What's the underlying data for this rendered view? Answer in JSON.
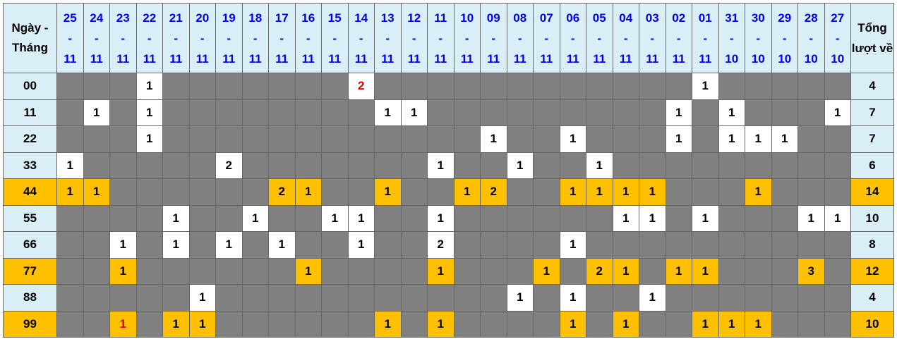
{
  "header": {
    "label": "Ngày - Tháng",
    "total": "Tổng lượt về"
  },
  "columns": [
    "25-11",
    "24-11",
    "23-11",
    "22-11",
    "21-11",
    "20-11",
    "19-11",
    "18-11",
    "17-11",
    "16-11",
    "15-11",
    "14-11",
    "13-11",
    "12-11",
    "11-11",
    "10-11",
    "09-11",
    "08-11",
    "07-11",
    "06-11",
    "05-11",
    "04-11",
    "03-11",
    "02-11",
    "01-11",
    "31-10",
    "30-10",
    "29-10",
    "28-10",
    "27-10"
  ],
  "colors": {
    "highlight": "#ffc000",
    "empty": "#808080",
    "header": "#daeef7",
    "date_text": "#0000ee",
    "red_text": "#e00000"
  },
  "rows": [
    {
      "label": "00",
      "highlight": false,
      "total": "4",
      "cells": {
        "3": 1,
        "11": 2,
        "24": 1
      },
      "red": [
        11
      ]
    },
    {
      "label": "11",
      "highlight": false,
      "total": "7",
      "cells": {
        "1": 1,
        "3": 1,
        "12": 1,
        "13": 1,
        "23": 1,
        "25": 1,
        "29": 1
      },
      "red": []
    },
    {
      "label": "22",
      "highlight": false,
      "total": "7",
      "cells": {
        "3": 1,
        "16": 1,
        "19": 1,
        "23": 1,
        "25": 1,
        "26": 1,
        "27": 1
      },
      "red": []
    },
    {
      "label": "33",
      "highlight": false,
      "total": "6",
      "cells": {
        "0": 1,
        "6": 2,
        "14": 1,
        "17": 1,
        "20": 1
      },
      "red": []
    },
    {
      "label": "44",
      "highlight": true,
      "total": "14",
      "cells": {
        "0": 1,
        "1": 1,
        "8": 2,
        "9": 1,
        "12": 1,
        "15": 1,
        "16": 2,
        "19": 1,
        "20": 1,
        "21": 1,
        "22": 1,
        "26": 1
      },
      "red": []
    },
    {
      "label": "55",
      "highlight": false,
      "total": "10",
      "cells": {
        "4": 1,
        "7": 1,
        "10": 1,
        "11": 1,
        "14": 1,
        "21": 1,
        "22": 1,
        "24": 1,
        "28": 1,
        "29": 1
      },
      "red": []
    },
    {
      "label": "66",
      "highlight": false,
      "total": "8",
      "cells": {
        "2": 1,
        "4": 1,
        "6": 1,
        "8": 1,
        "11": 1,
        "14": 2,
        "19": 1
      },
      "red": []
    },
    {
      "label": "77",
      "highlight": true,
      "total": "12",
      "cells": {
        "2": 1,
        "9": 1,
        "14": 1,
        "18": 1,
        "20": 2,
        "21": 1,
        "23": 1,
        "24": 1,
        "28": 3
      },
      "red": []
    },
    {
      "label": "88",
      "highlight": false,
      "total": "4",
      "cells": {
        "5": 1,
        "17": 1,
        "19": 1,
        "22": 1
      },
      "red": []
    },
    {
      "label": "99",
      "highlight": true,
      "total": "10",
      "cells": {
        "2": 1,
        "4": 1,
        "5": 1,
        "12": 1,
        "14": 1,
        "19": 1,
        "21": 1,
        "24": 1,
        "25": 1,
        "26": 1
      },
      "red": [
        2
      ]
    }
  ]
}
